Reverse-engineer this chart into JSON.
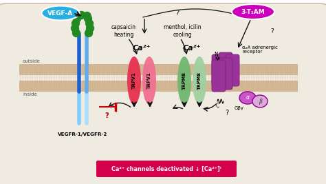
{
  "bg_color": "#ffffff",
  "cell_bg": "#f0ebe0",
  "membrane_color": "#d4b896",
  "membrane_stripe": "#c4a070",
  "outside_label": "outside",
  "inside_label": "inside",
  "vegfa_label": "VEGF-A",
  "vegfa_color": "#29aee0",
  "tam_label": "3-T₁AM",
  "tam_color": "#cc00bb",
  "trpv1_color_dark": "#e83050",
  "trpv1_color_light": "#f07090",
  "trpm8_color_dark": "#70b870",
  "trpm8_color_light": "#a0d0a0",
  "receptor_color": "#993399",
  "receptor_dark": "#7a2080",
  "capsaicin_label": "capsaicin\nheating",
  "menthol_label": "menthol, icilin\ncooling",
  "adrenergic_label": "α₂A adrenergic\nreceptor",
  "vegfr_label": "VEGFR-1/VEGFR-2",
  "bottom_box_color": "#d4004a",
  "bottom_text": "Ca²⁺ channels deactivated ↓ [Ca²⁺]ᴵ",
  "ca2p_label": "Ca²⁺",
  "trpv1_label": "TRPV1",
  "trpm8_label": "TRPM8",
  "q": "?",
  "alpha_label": "α",
  "beta_label": "β",
  "gpa_label": "Gβγ",
  "n_label": "N",
  "c_label": "C",
  "vegfr_blue_dark": "#2060cc",
  "vegfr_blue_light": "#60aaee",
  "vegfr_cyan": "#80ccff",
  "green_domain": "#228822",
  "arrow_color": "#111111",
  "red_arrow": "#cc0000",
  "text_color": "#222222"
}
